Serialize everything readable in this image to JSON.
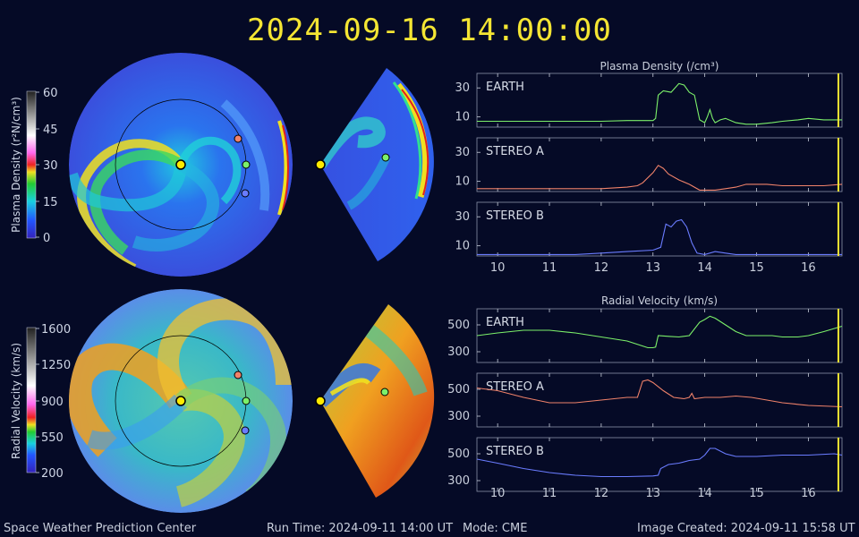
{
  "header": {
    "timestamp": "2024-09-16 14:00:00"
  },
  "colorbars": {
    "density": {
      "label": "Plasma Density (r²N/cm³)",
      "ticks": [
        "60",
        "45",
        "30",
        "15",
        "0"
      ]
    },
    "velocity": {
      "label": "Radial Velocity (km/s)",
      "ticks": [
        "1600",
        "1250",
        "900",
        "550",
        "200"
      ]
    }
  },
  "footer": {
    "org": "Space Weather Prediction Center",
    "run_time": "Run Time: 2024-09-11 14:00 UT",
    "mode": "Mode: CME",
    "created": "Image Created: 2024-09-11 15:58 UT"
  },
  "colors": {
    "background": "#050a26",
    "title": "#f4e533",
    "earth": "#7cf06a",
    "stereo_a": "#f0826a",
    "stereo_b": "#6a7cff",
    "current_time_marker": "#f4e533"
  },
  "chart_data": [
    {
      "type": "line",
      "title": "Plasma Density (/cm³)",
      "x_ticks": [
        "10",
        "11",
        "12",
        "13",
        "14",
        "15",
        "16"
      ],
      "xlim": [
        9.6,
        16.65
      ],
      "current_time": 16.58,
      "panels": [
        {
          "name": "EARTH",
          "color": "#7cf06a",
          "y_ticks": [
            10,
            30
          ],
          "ylim": [
            3,
            40
          ],
          "x": [
            9.6,
            10,
            10.5,
            11,
            11.5,
            12,
            12.5,
            12.9,
            13.0,
            13.05,
            13.1,
            13.2,
            13.35,
            13.5,
            13.6,
            13.7,
            13.8,
            13.9,
            14.0,
            14.05,
            14.1,
            14.15,
            14.2,
            14.3,
            14.4,
            14.6,
            14.8,
            15.0,
            15.3,
            15.5,
            15.8,
            16.0,
            16.3,
            16.65
          ],
          "values": [
            7,
            7,
            7,
            7,
            7,
            7,
            7.5,
            7.5,
            7.5,
            9,
            25,
            28,
            27,
            33,
            32,
            27,
            25,
            8,
            6,
            10,
            15,
            9,
            6,
            8,
            9,
            6,
            5,
            5,
            6,
            7,
            8,
            9,
            8,
            8
          ]
        },
        {
          "name": "STEREO A",
          "color": "#f0826a",
          "y_ticks": [
            10,
            30
          ],
          "ylim": [
            3,
            40
          ],
          "x": [
            9.6,
            10,
            10.5,
            11,
            11.5,
            12,
            12.5,
            12.7,
            12.8,
            13.0,
            13.1,
            13.2,
            13.3,
            13.5,
            13.7,
            13.9,
            14.0,
            14.2,
            14.4,
            14.6,
            14.8,
            15.0,
            15.2,
            15.5,
            15.8,
            16.0,
            16.3,
            16.65
          ],
          "values": [
            5,
            5,
            5,
            5,
            5,
            5,
            6,
            7,
            9,
            16,
            21,
            19,
            15,
            11,
            8,
            4,
            4,
            4,
            5,
            6,
            8,
            8,
            8,
            7,
            7,
            7,
            7,
            8
          ]
        },
        {
          "name": "STEREO B",
          "color": "#6a7cff",
          "y_ticks": [
            10,
            30
          ],
          "ylim": [
            3,
            40
          ],
          "x": [
            9.6,
            10,
            10.5,
            11,
            11.5,
            12,
            12.5,
            13.0,
            13.15,
            13.25,
            13.35,
            13.45,
            13.55,
            13.65,
            13.75,
            13.85,
            14.0,
            14.2,
            14.4,
            14.6,
            15.0,
            15.5,
            16.0,
            16.65
          ],
          "values": [
            4,
            4,
            4,
            4,
            4,
            5,
            6,
            7,
            9,
            25,
            23,
            27,
            28,
            23,
            12,
            5,
            4,
            6,
            5,
            4,
            4,
            4,
            4,
            4
          ]
        }
      ]
    },
    {
      "type": "line",
      "title": "Radial Velocity (km/s)",
      "x_ticks": [
        "10",
        "11",
        "12",
        "13",
        "14",
        "15",
        "16"
      ],
      "xlim": [
        9.6,
        16.65
      ],
      "current_time": 16.58,
      "panels": [
        {
          "name": "EARTH",
          "color": "#7cf06a",
          "y_ticks": [
            300,
            500
          ],
          "ylim": [
            220,
            620
          ],
          "x": [
            9.6,
            10,
            10.5,
            11,
            11.5,
            12,
            12.5,
            12.9,
            13.0,
            13.05,
            13.1,
            13.3,
            13.5,
            13.7,
            13.9,
            14.0,
            14.1,
            14.2,
            14.4,
            14.6,
            14.8,
            15.0,
            15.3,
            15.5,
            15.8,
            16.0,
            16.3,
            16.65
          ],
          "values": [
            420,
            440,
            460,
            460,
            440,
            410,
            380,
            330,
            330,
            335,
            420,
            415,
            410,
            420,
            520,
            540,
            565,
            550,
            500,
            450,
            420,
            420,
            420,
            410,
            410,
            420,
            450,
            490
          ]
        },
        {
          "name": "STEREO A",
          "color": "#f0826a",
          "y_ticks": [
            300,
            500
          ],
          "ylim": [
            220,
            620
          ],
          "x": [
            9.6,
            10,
            10.5,
            11,
            11.5,
            12,
            12.5,
            12.7,
            12.8,
            12.9,
            13.0,
            13.2,
            13.4,
            13.6,
            13.7,
            13.75,
            13.8,
            14.0,
            14.3,
            14.6,
            14.9,
            15.2,
            15.5,
            16.0,
            16.65
          ],
          "values": [
            510,
            490,
            440,
            400,
            400,
            420,
            440,
            440,
            560,
            570,
            550,
            490,
            440,
            430,
            440,
            470,
            430,
            440,
            440,
            450,
            440,
            420,
            400,
            380,
            370
          ]
        },
        {
          "name": "STEREO B",
          "color": "#6a7cff",
          "y_ticks": [
            300,
            500
          ],
          "ylim": [
            220,
            620
          ],
          "x": [
            9.6,
            10,
            10.5,
            11,
            11.5,
            12,
            12.5,
            13.0,
            13.1,
            13.15,
            13.3,
            13.5,
            13.7,
            13.9,
            14.0,
            14.1,
            14.2,
            14.4,
            14.6,
            15.0,
            15.5,
            16.0,
            16.5,
            16.65
          ],
          "values": [
            460,
            430,
            390,
            360,
            340,
            330,
            330,
            335,
            340,
            390,
            420,
            430,
            450,
            460,
            490,
            540,
            540,
            500,
            480,
            480,
            490,
            490,
            500,
            490
          ]
        }
      ]
    }
  ]
}
